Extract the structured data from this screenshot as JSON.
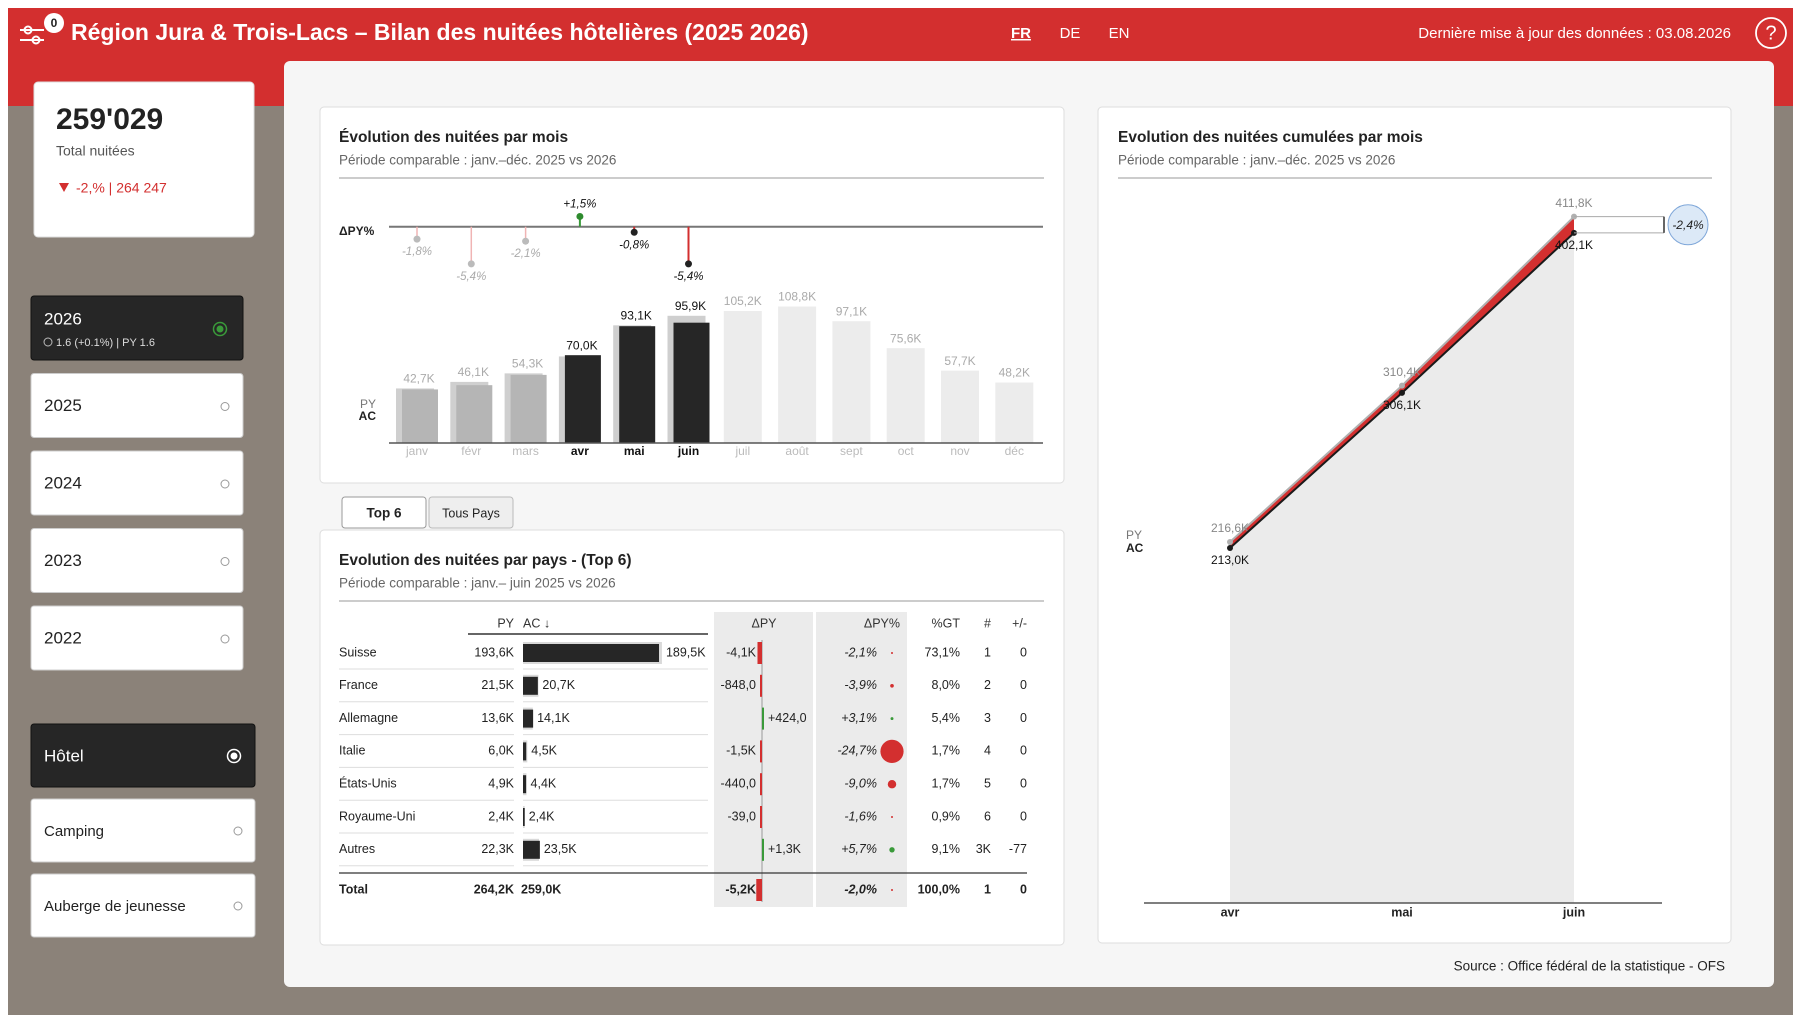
{
  "header": {
    "badge": "0",
    "title": "Région Jura & Trois-Lacs – Bilan des nuitées hôtelières (2025 2026)",
    "languages": [
      {
        "label": "FR",
        "selected": true
      },
      {
        "label": "DE"
      },
      {
        "label": "EN"
      }
    ],
    "updated": "Dernière mise à jour des données : 03.08.2026",
    "help": "?"
  },
  "kpi": {
    "value": "259'029",
    "label": "Total nuitées",
    "delta": "-2,% | 264 247"
  },
  "years": [
    {
      "label": "2026",
      "detail": "1.6 (+0.1%) | PY 1.6",
      "selected": true
    },
    {
      "label": "2025"
    },
    {
      "label": "2024"
    },
    {
      "label": "2023"
    },
    {
      "label": "2022"
    }
  ],
  "accommodation_types": [
    {
      "label": "Hôtel",
      "selected": true
    },
    {
      "label": "Camping"
    },
    {
      "label": "Auberge de jeunesse"
    }
  ],
  "monthly_chart": {
    "type": "bar",
    "title": "Évolution des nuitées par mois",
    "subtitle": "Période comparable : janv.–déc. 2025 vs 2026",
    "categories": [
      "janv",
      "févr",
      "mars",
      "avr",
      "mai",
      "juin",
      "juil",
      "août",
      "sept",
      "oct",
      "nov",
      "déc"
    ],
    "active": [
      false,
      false,
      false,
      true,
      true,
      true,
      false,
      false,
      false,
      false,
      false,
      false
    ],
    "ylim": [
      0,
      110
    ],
    "series": [
      {
        "name": "PY",
        "color": "#cfcfcf",
        "future_color": "#ececec",
        "values": [
          43.5,
          48.7,
          55.5,
          69.0,
          93.8,
          101.4,
          105.2,
          108.8,
          97.1,
          75.6,
          57.7,
          48.2
        ],
        "value_labels": [
          null,
          null,
          null,
          null,
          null,
          null,
          "105,2K",
          "108,8K",
          "97,1K",
          "75,6K",
          "57,7K",
          "48,2K"
        ]
      },
      {
        "name": "AC",
        "color": "#262626",
        "inactive_color": "#b5b5b5",
        "values": [
          42.7,
          46.1,
          54.3,
          70.0,
          93.1,
          95.9,
          null,
          null,
          null,
          null,
          null,
          null
        ],
        "value_labels": [
          "42,7K",
          "46,1K",
          "54,3K",
          "70,0K",
          "93,1K",
          "95,9K",
          null,
          null,
          null,
          null,
          null,
          null
        ]
      }
    ],
    "delta": {
      "name": "ΔPY%",
      "ylim": [
        -6,
        2
      ],
      "values": [
        -1.8,
        -5.4,
        -2.1,
        1.5,
        -0.8,
        -5.4
      ],
      "value_labels": [
        "-1,8%",
        "-5,4%",
        "-2,1%",
        "+1,5%",
        "-0,8%",
        "-5,4%"
      ]
    }
  },
  "tabs": [
    {
      "label": "Top 6",
      "selected": true
    },
    {
      "label": "Tous Pays"
    }
  ],
  "country_table": {
    "title": "Evolution des nuitées par pays - (Top 6)",
    "subtitle": "Période comparable : janv.– juin 2025 vs 2026",
    "columns": [
      "PY",
      "AC ↓",
      "ΔPY",
      "ΔPY%",
      "%GT",
      "#",
      "+/-"
    ],
    "rows": [
      {
        "name": "Suisse",
        "py": 193.6,
        "py_label": "193,6K",
        "ac": 189.5,
        "ac_label": "189,5K",
        "dpy": -4.1,
        "dpy_label": "-4,1K",
        "dpy_pct": -2.1,
        "dpy_pct_label": "-2,1%",
        "gt": "73,1%",
        "rank": "1",
        "change": "0"
      },
      {
        "name": "France",
        "py": 21.5,
        "py_label": "21,5K",
        "ac": 20.7,
        "ac_label": "20,7K",
        "dpy": -0.848,
        "dpy_label": "-848,0",
        "dpy_pct": -3.9,
        "dpy_pct_label": "-3,9%",
        "gt": "8,0%",
        "rank": "2",
        "change": "0"
      },
      {
        "name": "Allemagne",
        "py": 13.6,
        "py_label": "13,6K",
        "ac": 14.1,
        "ac_label": "14,1K",
        "dpy": 0.424,
        "dpy_label": "+424,0",
        "dpy_pct": 3.1,
        "dpy_pct_label": "+3,1%",
        "gt": "5,4%",
        "rank": "3",
        "change": "0"
      },
      {
        "name": "Italie",
        "py": 6.0,
        "py_label": "6,0K",
        "ac": 4.5,
        "ac_label": "4,5K",
        "dpy": -1.5,
        "dpy_label": "-1,5K",
        "dpy_pct": -24.7,
        "dpy_pct_label": "-24,7%",
        "gt": "1,7%",
        "rank": "4",
        "change": "0"
      },
      {
        "name": "États-Unis",
        "py": 4.9,
        "py_label": "4,9K",
        "ac": 4.4,
        "ac_label": "4,4K",
        "dpy": -0.44,
        "dpy_label": "-440,0",
        "dpy_pct": -9.0,
        "dpy_pct_label": "-9,0%",
        "gt": "1,7%",
        "rank": "5",
        "change": "0"
      },
      {
        "name": "Royaume-Uni",
        "py": 2.4,
        "py_label": "2,4K",
        "ac": 2.4,
        "ac_label": "2,4K",
        "dpy": -0.039,
        "dpy_label": "-39,0",
        "dpy_pct": -1.6,
        "dpy_pct_label": "-1,6%",
        "gt": "0,9%",
        "rank": "6",
        "change": "0"
      },
      {
        "name": "Autres",
        "py": 22.3,
        "py_label": "22,3K",
        "ac": 23.5,
        "ac_label": "23,5K",
        "dpy": 1.3,
        "dpy_label": "+1,3K",
        "dpy_pct": 5.7,
        "dpy_pct_label": "+5,7%",
        "gt": "9,1%",
        "rank": "3K",
        "change": "-77"
      }
    ],
    "total": {
      "name": "Total",
      "py_label": "264,2K",
      "ac_label": "259,0K",
      "dpy": -5.2,
      "dpy_label": "-5,2K",
      "dpy_pct": -2.0,
      "dpy_pct_label": "-2,0%",
      "gt": "100,0%",
      "rank": "1",
      "change": "0"
    }
  },
  "cumulative_chart": {
    "type": "line",
    "title": "Evolution des nuitées cumulées par mois",
    "subtitle": "Période comparable : janv.–déc. 2025 vs 2026",
    "categories": [
      "avr",
      "mai",
      "juin"
    ],
    "ylim": [
      0,
      420
    ],
    "series": [
      {
        "name": "PY",
        "color": "#b0b0b0",
        "values": [
          216.6,
          310.4,
          411.8
        ],
        "value_labels": [
          "216,6K",
          "310,4K",
          "411,8K"
        ]
      },
      {
        "name": "AC",
        "color": "#1a1a1a",
        "values": [
          213.0,
          306.1,
          402.1
        ],
        "value_labels": [
          "213,0K",
          "306,1K",
          "402,1K"
        ]
      }
    ],
    "delta": {
      "value": -2.4,
      "label": "-2,4%"
    }
  },
  "source": "Source : Office fédéral de la statistique - OFS"
}
